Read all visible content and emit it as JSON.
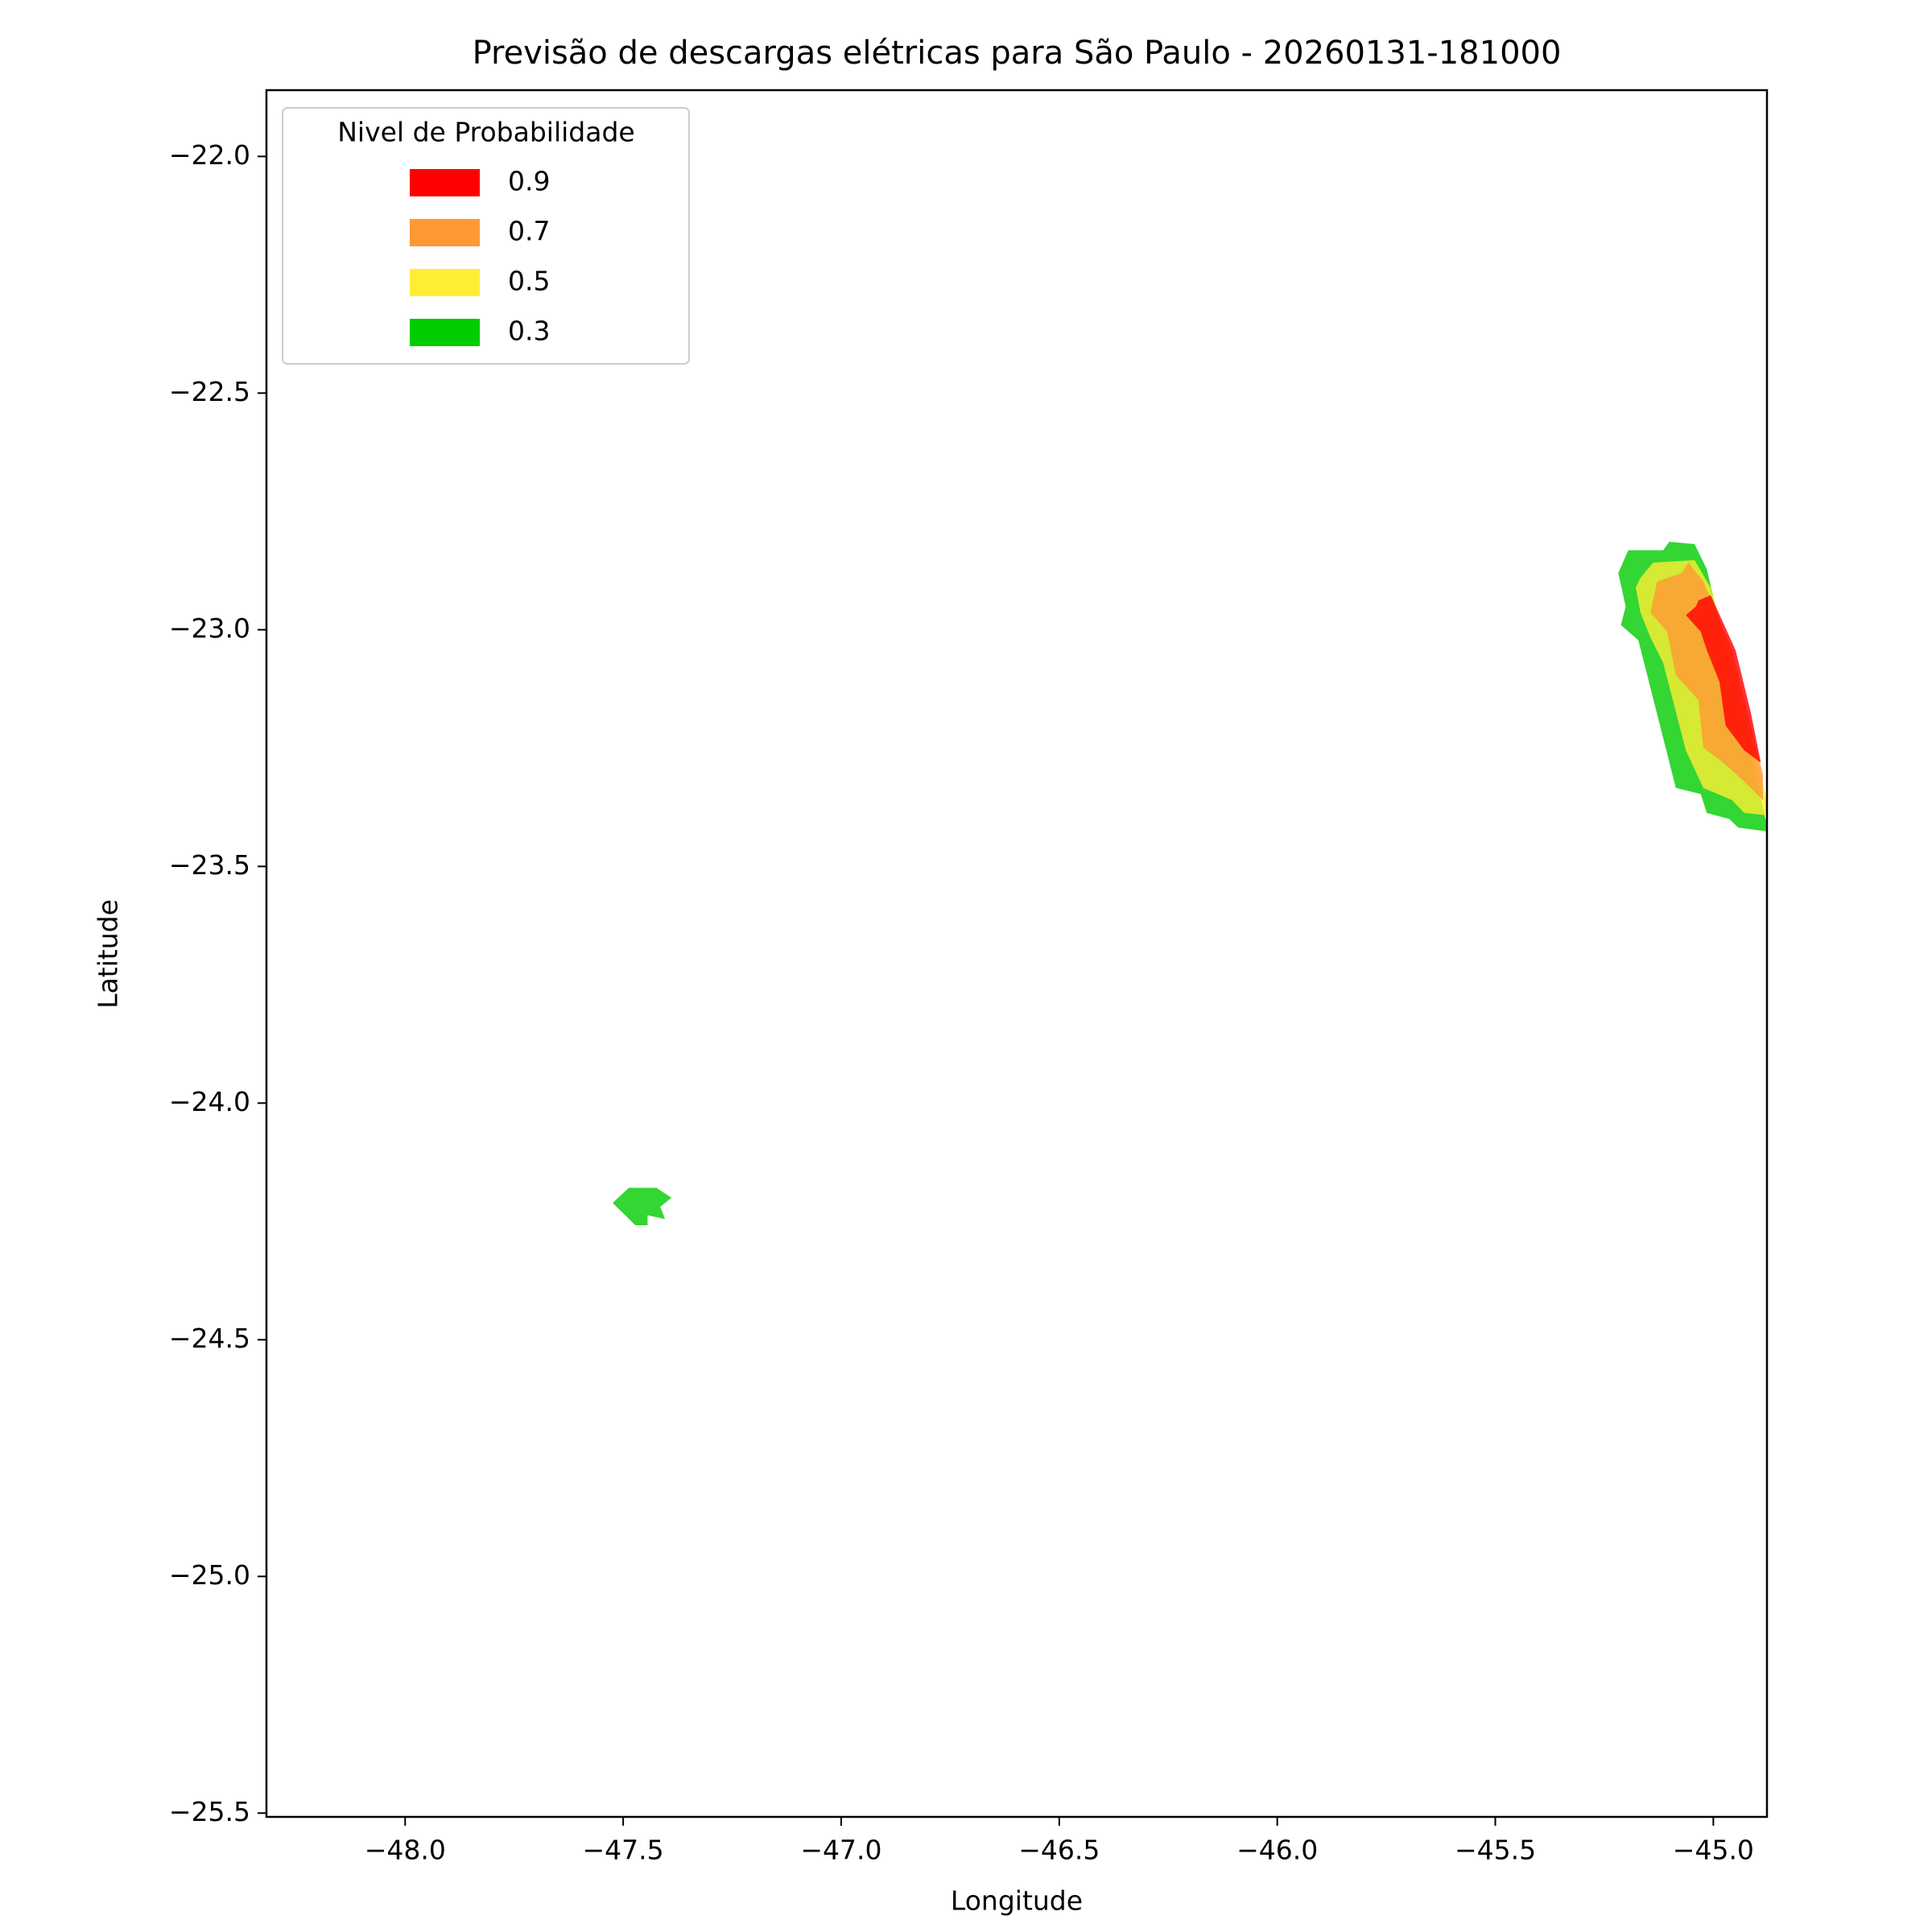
{
  "chart_data": {
    "type": "contour",
    "title": "Previsão de descargas elétricas para São Paulo - 20260131-181000",
    "x_label": "Longitude",
    "y_label": "Latitude",
    "legend_title": "Nivel de Probabilidade",
    "legend_position": "upper left",
    "alpha": 0.8,
    "xlim": [
      -48.318,
      -44.877
    ],
    "ylim": [
      -25.508,
      -21.86
    ],
    "xticks": [
      {
        "value": -48,
        "label": "−48.0"
      },
      {
        "value": -47.5,
        "label": "−47.5"
      },
      {
        "value": -47,
        "label": "−47.0"
      },
      {
        "value": -46.5,
        "label": "−46.5"
      },
      {
        "value": -46,
        "label": "−46.0"
      },
      {
        "value": -45.5,
        "label": "−45.5"
      },
      {
        "value": -45,
        "label": "−45.0"
      }
    ],
    "yticks": [
      {
        "value": -22,
        "label": "−22.0"
      },
      {
        "value": -22.5,
        "label": "−22.5"
      },
      {
        "value": -23,
        "label": "−23.0"
      },
      {
        "value": -23.5,
        "label": "−23.5"
      },
      {
        "value": -24,
        "label": "−24.0"
      },
      {
        "value": -24.5,
        "label": "−24.5"
      },
      {
        "value": -25,
        "label": "−25.0"
      },
      {
        "value": -25.5,
        "label": "−25.5"
      }
    ],
    "series": [
      {
        "name": "0.9",
        "color": "#ff0000",
        "polygons": [
          {
            "x": [
              -45.063,
              -45.04,
              -45.034,
              -45.006,
              -44.949,
              -44.914,
              -44.891,
              -44.929,
              -44.972,
              -44.986,
              -45.015,
              -45.029
            ],
            "y": [
              -22.969,
              -22.951,
              -22.938,
              -22.927,
              -23.043,
              -23.175,
              -23.281,
              -23.255,
              -23.202,
              -23.11,
              -23.043,
              -23.004
            ]
          }
        ]
      },
      {
        "name": "0.7",
        "color": "#ff9933",
        "polygons": [
          {
            "x": [
              -45.138,
              -45.129,
              -45.072,
              -45.057,
              -45.023,
              -44.957,
              -44.886,
              -44.886,
              -44.929,
              -44.977,
              -45.023,
              -45.034,
              -45.086,
              -45.106,
              -45.144
            ],
            "y": [
              -22.938,
              -22.898,
              -22.88,
              -22.858,
              -22.898,
              -23.043,
              -23.307,
              -23.36,
              -23.321,
              -23.281,
              -23.249,
              -23.149,
              -23.096,
              -23.004,
              -22.964
            ]
          }
        ]
      },
      {
        "name": "0.5",
        "color": "#ffee33",
        "polygons": [
          {
            "x": [
              -45.167,
              -45.138,
              -45.043,
              -45.006,
              -44.877,
              -44.877,
              -44.929,
              -44.957,
              -45.023,
              -45.063,
              -45.115,
              -45.144,
              -45.167,
              -45.178
            ],
            "y": [
              -22.89,
              -22.858,
              -22.853,
              -22.911,
              -23.36,
              -23.392,
              -23.387,
              -23.36,
              -23.334,
              -23.255,
              -23.07,
              -23.017,
              -22.964,
              -22.911
            ]
          }
        ]
      },
      {
        "name": "0.3",
        "color": "#00cc00",
        "polygons": [
          {
            "x": [
              -45.195,
              -45.115,
              -45.101,
              -45.043,
              -45.015,
              -44.877,
              -44.877,
              -44.943,
              -44.963,
              -45.015,
              -45.029,
              -45.086,
              -45.172,
              -45.212,
              -45.201,
              -45.218
            ],
            "y": [
              -22.832,
              -22.832,
              -22.814,
              -22.819,
              -22.872,
              -23.413,
              -23.426,
              -23.418,
              -23.4,
              -23.387,
              -23.347,
              -23.334,
              -23.022,
              -22.99,
              -22.951,
              -22.88
            ]
          },
          {
            "x": [
              -47.524,
              -47.487,
              -47.424,
              -47.389,
              -47.415,
              -47.404,
              -47.444,
              -47.444,
              -47.472
            ],
            "y": [
              -24.211,
              -24.179,
              -24.179,
              -24.2,
              -24.219,
              -24.245,
              -24.237,
              -24.258,
              -24.258
            ]
          }
        ]
      }
    ]
  }
}
